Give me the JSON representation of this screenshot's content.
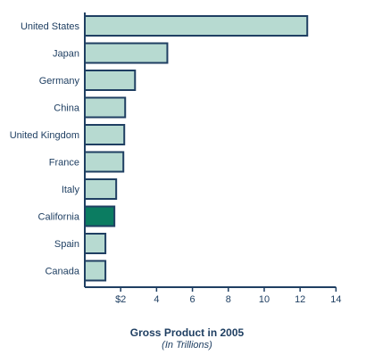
{
  "chart_data": {
    "type": "bar",
    "orientation": "horizontal",
    "title": "Gross Product in 2005",
    "subtitle": "(In Trillions)",
    "categories": [
      "United States",
      "Japan",
      "Germany",
      "China",
      "United Kingdom",
      "France",
      "Italy",
      "California",
      "Spain",
      "Canada"
    ],
    "values": [
      12.4,
      4.6,
      2.8,
      2.25,
      2.2,
      2.15,
      1.75,
      1.65,
      1.15,
      1.15
    ],
    "highlight_category": "California",
    "xlim": [
      0,
      14
    ],
    "x_ticks": [
      2,
      4,
      6,
      8,
      10,
      12,
      14
    ],
    "x_tick_labels": [
      "$2",
      "4",
      "6",
      "8",
      "10",
      "12",
      "14"
    ],
    "grid": false,
    "colors": {
      "bar_fill": "#b7dad1",
      "bar_stroke": "#1f3f62",
      "highlight_fill": "#0b7c61",
      "axis": "#1f3f62",
      "text": "#1f3f62"
    }
  }
}
